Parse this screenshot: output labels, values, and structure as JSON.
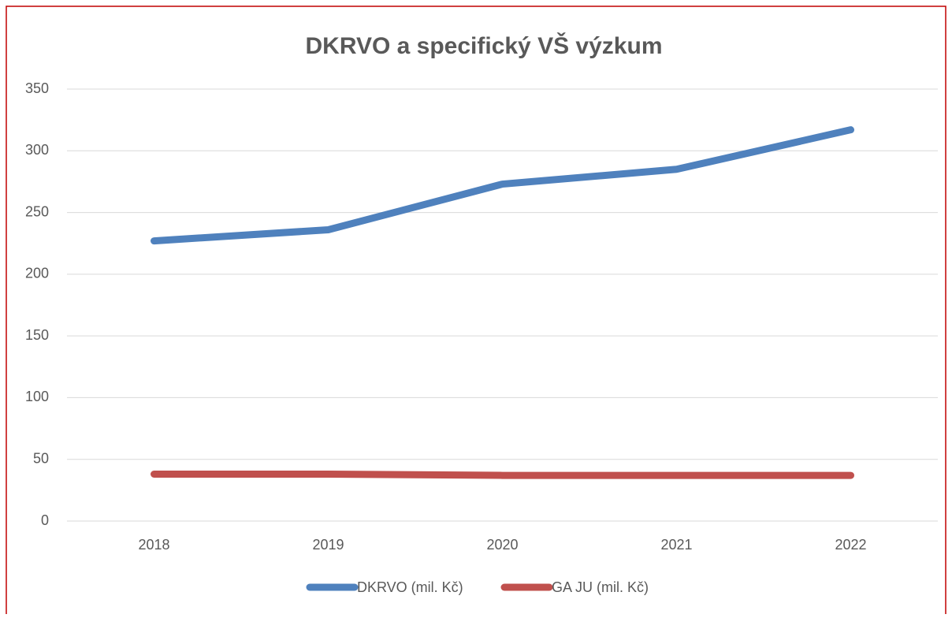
{
  "chart_data": {
    "type": "line",
    "title": "DKRVO a specifický VŠ výzkum",
    "categories": [
      "2018",
      "2019",
      "2020",
      "2021",
      "2022"
    ],
    "series": [
      {
        "name": "DKRVO (mil. Kč)",
        "color": "#4f81bd",
        "values": [
          227,
          236,
          273,
          285,
          317
        ]
      },
      {
        "name": "GA JU (mil. Kč)",
        "color": "#c0504d",
        "values": [
          38,
          38,
          37,
          37,
          37
        ]
      }
    ],
    "ylim": [
      0,
      350
    ],
    "yticks": [
      0,
      50,
      100,
      150,
      200,
      250,
      300,
      350
    ],
    "grid": true,
    "legend": "bottom"
  }
}
